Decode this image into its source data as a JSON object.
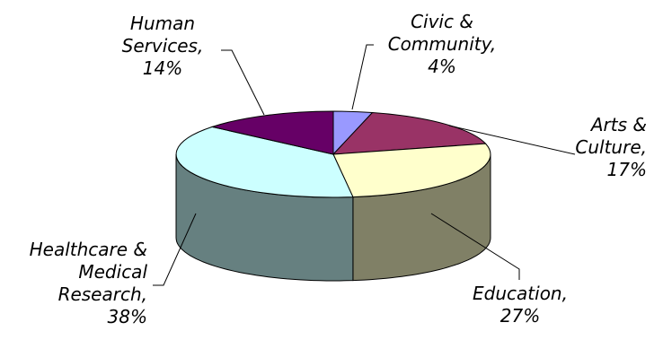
{
  "chart_data": {
    "type": "pie",
    "title": "",
    "categories": [
      "Civic & Community",
      "Arts & Culture",
      "Education",
      "Healthcare & Medical Research",
      "Human Services"
    ],
    "values": [
      4,
      17,
      27,
      38,
      14
    ],
    "labels": {
      "civic": [
        "Civic &",
        "Community,",
        "4%"
      ],
      "arts": [
        "Arts &",
        "Culture,",
        "17%"
      ],
      "education": [
        "Education,",
        "27%"
      ],
      "healthcare": [
        "Healthcare &",
        "Medical",
        "Research,",
        "38%"
      ],
      "human": [
        "Human",
        "Services,",
        "14%"
      ]
    },
    "colors": {
      "civic": "#9999ff",
      "arts": "#993366",
      "education": "#ffffcc",
      "healthcare": "#ccffff",
      "human": "#660066"
    },
    "style": "3d-pie",
    "legend": "none"
  }
}
